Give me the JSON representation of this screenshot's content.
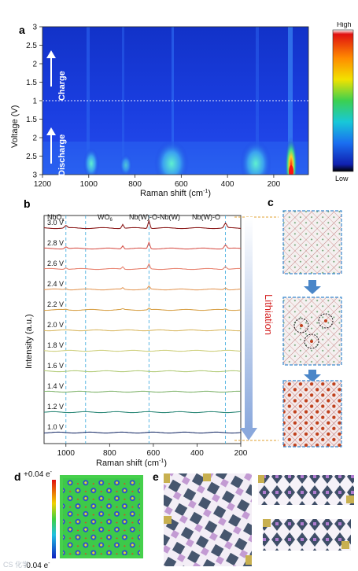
{
  "panels": {
    "a": "a",
    "b": "b",
    "c": "c",
    "d": "d",
    "e": "e"
  },
  "panel_a": {
    "type": "heatmap",
    "xlabel": "Raman shift (cm",
    "xlabel_sup": "-1",
    "xlabel_end": ")",
    "ylabel": "Voltage (V)",
    "x_ticks": [
      "1200",
      "1000",
      "800",
      "600",
      "400",
      "200"
    ],
    "y_ticks": [
      "3",
      "2.5",
      "2",
      "1.5",
      "1",
      "1.5",
      "2",
      "2.5",
      "3"
    ],
    "charge_label": "Charge",
    "discharge_label": "Discharge",
    "colorbar_high": "High",
    "colorbar_low": "Low"
  },
  "chart_data": {
    "type": "line",
    "xlabel": "Raman shift (cm-1)",
    "ylabel": "Intensity (a.u.)",
    "xlim": [
      1100,
      200
    ],
    "x_ticks": [
      "1000",
      "800",
      "600",
      "400",
      "200"
    ],
    "series": [
      {
        "name": "3.0 V",
        "color": "#8b1a1a"
      },
      {
        "name": "2.8 V",
        "color": "#d9574f"
      },
      {
        "name": "2.6 V",
        "color": "#e8826f"
      },
      {
        "name": "2.4 V",
        "color": "#e49a5a"
      },
      {
        "name": "2.2 V",
        "color": "#d8a24a"
      },
      {
        "name": "2.0 V",
        "color": "#d9b862"
      },
      {
        "name": "1.8 V",
        "color": "#cfd07e"
      },
      {
        "name": "1.6 V",
        "color": "#b4cc7a"
      },
      {
        "name": "1.4 V",
        "color": "#7fb36a"
      },
      {
        "name": "1.2 V",
        "color": "#2f8a7a"
      },
      {
        "name": "1.0 V",
        "color": "#22356e"
      }
    ],
    "annotations": [
      "NbO",
      "WO",
      "Nb(W)-O-Nb(W)",
      "Nb(W)-O"
    ],
    "annotation_subs": [
      "x",
      "6",
      "",
      ""
    ],
    "reference_lines": [
      1000,
      910,
      620,
      270
    ]
  },
  "panel_c": {
    "arrow_label": "Lithiation"
  },
  "panel_d": {
    "scale_high": "+0.04 e",
    "scale_low": "-0.04 e",
    "sup": "-"
  },
  "watermark": "CS 化学"
}
